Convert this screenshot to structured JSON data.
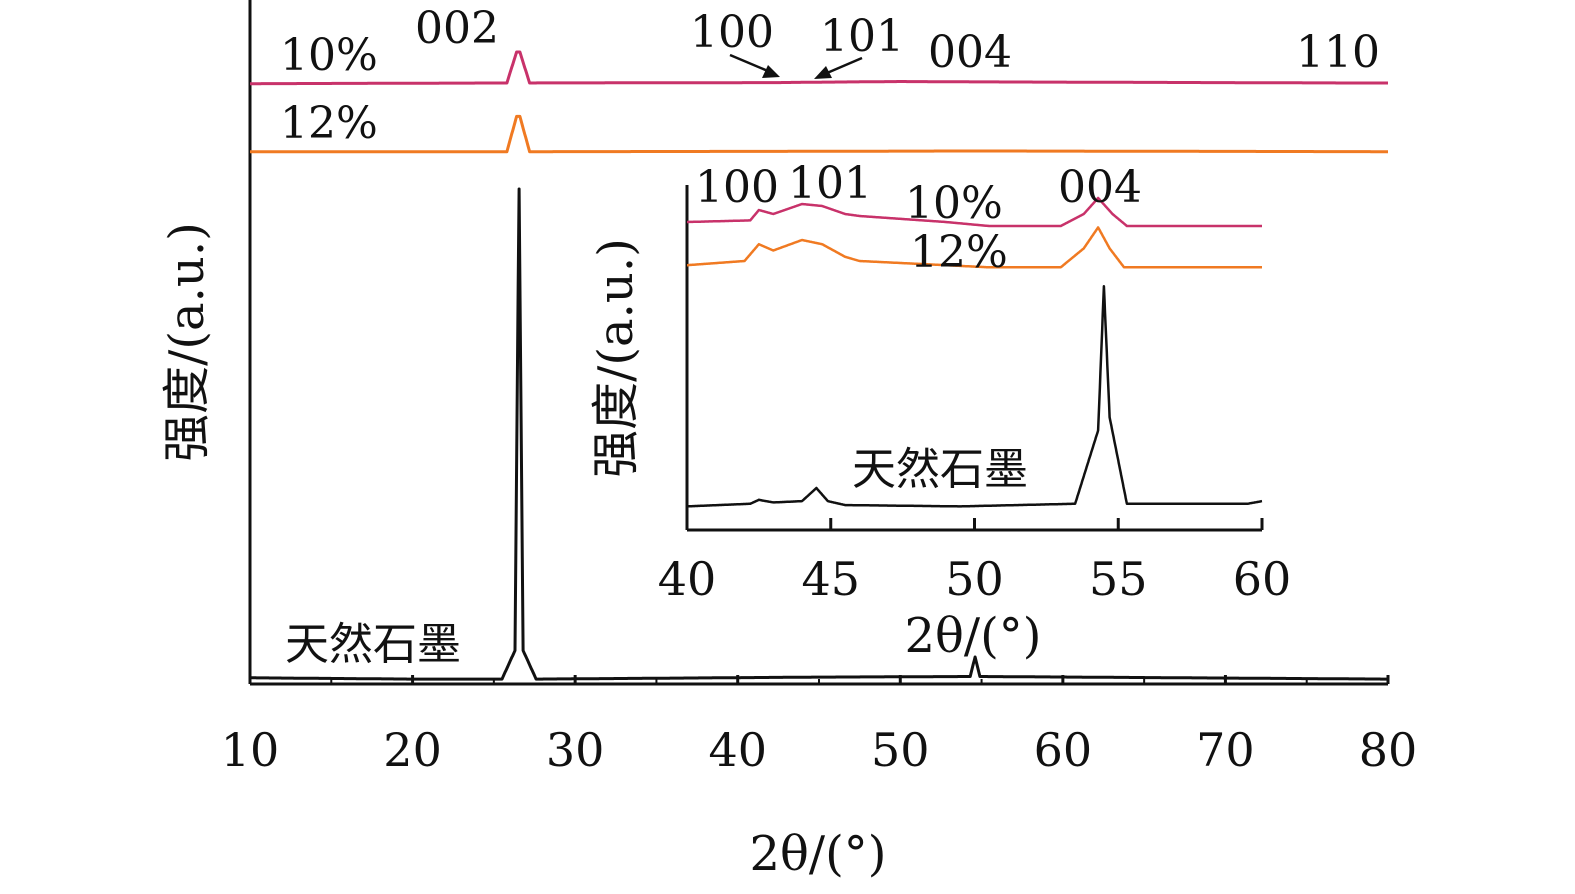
{
  "chart_data": [
    {
      "type": "line",
      "title": "",
      "xlabel": "2θ/(°)",
      "ylabel": "强度/(a.u.)",
      "xlim": [
        10,
        80
      ],
      "x_ticks": [
        "10",
        "20",
        "30",
        "40",
        "50",
        "60",
        "70",
        "80"
      ],
      "grid": false,
      "series": [
        {
          "name": "10%",
          "color": "#c8326a",
          "points": [
            [
              10,
              0.006
            ],
            [
              25.8,
              0.007
            ],
            [
              26.4,
              0.05
            ],
            [
              26.6,
              0.05
            ],
            [
              27.2,
              0.007
            ],
            [
              42.4,
              0.0075
            ],
            [
              44.5,
              0.008
            ],
            [
              50.0,
              0.009
            ],
            [
              54.6,
              0.0085
            ],
            [
              77.0,
              0.007
            ],
            [
              80,
              0.007
            ]
          ]
        },
        {
          "name": "12%",
          "color": "#f07a22",
          "points": [
            [
              10,
              0.006
            ],
            [
              25.8,
              0.006
            ],
            [
              26.4,
              0.055
            ],
            [
              26.6,
              0.055
            ],
            [
              27.2,
              0.006
            ],
            [
              44.5,
              0.0065
            ],
            [
              54.6,
              0.007
            ],
            [
              80,
              0.006
            ]
          ]
        },
        {
          "name": "天然石墨",
          "color": "#111111",
          "points": [
            [
              10,
              0.008
            ],
            [
              20,
              0.006
            ],
            [
              25.5,
              0.006
            ],
            [
              26.3,
              0.05
            ],
            [
              26.55,
              0.76
            ],
            [
              26.8,
              0.05
            ],
            [
              27.6,
              0.006
            ],
            [
              44.5,
              0.009
            ],
            [
              54.3,
              0.01
            ],
            [
              54.6,
              0.04
            ],
            [
              54.9,
              0.01
            ],
            [
              80,
              0.006
            ]
          ]
        }
      ],
      "annotations": [
        "002",
        "100",
        "101",
        "004",
        "110"
      ]
    },
    {
      "type": "line",
      "title": "",
      "xlabel": "2θ/(°)",
      "ylabel": "强度/(a.u.)",
      "xlim": [
        40,
        60
      ],
      "x_ticks": [
        "40",
        "45",
        "50",
        "55",
        "60"
      ],
      "grid": false,
      "series": [
        {
          "name": "10%",
          "color": "#c8326a",
          "points": [
            [
              40,
              0.04
            ],
            [
              42.2,
              0.044
            ],
            [
              42.5,
              0.07
            ],
            [
              43.0,
              0.06
            ],
            [
              44.0,
              0.085
            ],
            [
              44.7,
              0.08
            ],
            [
              45.5,
              0.06
            ],
            [
              46.0,
              0.055
            ],
            [
              49.0,
              0.04
            ],
            [
              50.5,
              0.03
            ],
            [
              53.0,
              0.03
            ],
            [
              53.8,
              0.06
            ],
            [
              54.3,
              0.1
            ],
            [
              54.8,
              0.06
            ],
            [
              55.3,
              0.03
            ],
            [
              60,
              0.03
            ]
          ]
        },
        {
          "name": "12%",
          "color": "#f07a22",
          "points": [
            [
              40,
              0.04
            ],
            [
              42.0,
              0.05
            ],
            [
              42.5,
              0.09
            ],
            [
              43.0,
              0.075
            ],
            [
              44.0,
              0.1
            ],
            [
              44.7,
              0.09
            ],
            [
              45.5,
              0.06
            ],
            [
              46.0,
              0.05
            ],
            [
              49.0,
              0.04
            ],
            [
              50.5,
              0.035
            ],
            [
              53.0,
              0.035
            ],
            [
              53.8,
              0.08
            ],
            [
              54.3,
              0.13
            ],
            [
              54.7,
              0.08
            ],
            [
              55.2,
              0.035
            ],
            [
              60,
              0.035
            ]
          ]
        },
        {
          "name": "天然石墨",
          "color": "#111111",
          "points": [
            [
              40,
              0.01
            ],
            [
              42.2,
              0.02
            ],
            [
              42.5,
              0.035
            ],
            [
              43.0,
              0.025
            ],
            [
              44.0,
              0.03
            ],
            [
              44.5,
              0.08
            ],
            [
              44.9,
              0.03
            ],
            [
              45.5,
              0.015
            ],
            [
              49.5,
              0.01
            ],
            [
              53.5,
              0.02
            ],
            [
              54.3,
              0.3
            ],
            [
              54.5,
              0.85
            ],
            [
              54.7,
              0.35
            ],
            [
              55.3,
              0.02
            ],
            [
              59.5,
              0.02
            ],
            [
              60,
              0.03
            ]
          ]
        }
      ],
      "annotations": [
        "100",
        "101",
        "004"
      ]
    }
  ]
}
